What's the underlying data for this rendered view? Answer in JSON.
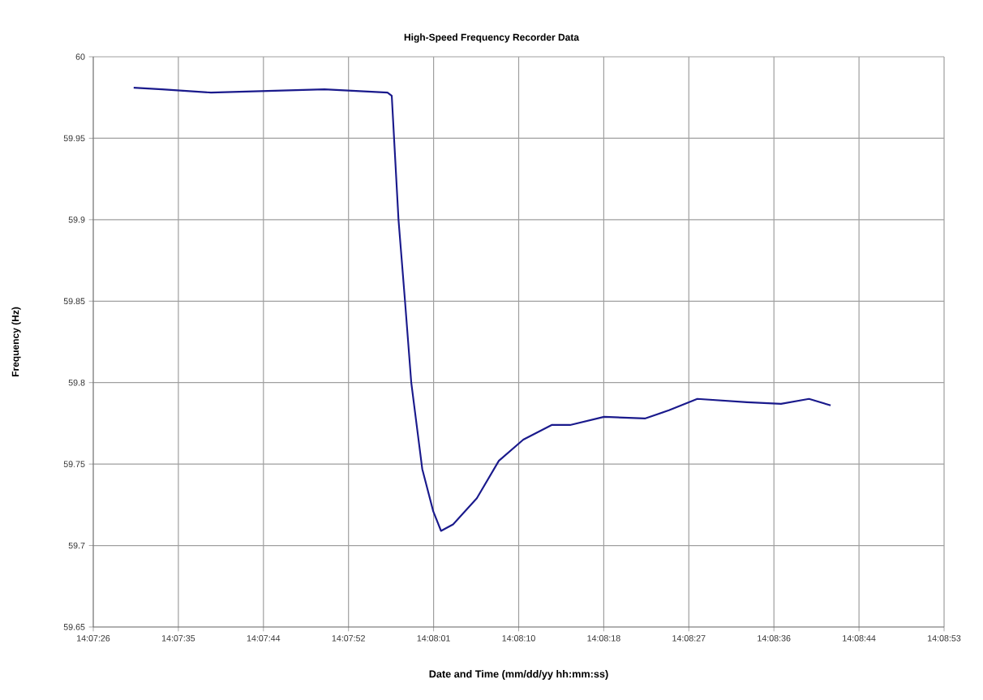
{
  "chart_data": {
    "type": "line",
    "title": "High-Speed Frequency Recorder Data",
    "xlabel": "Date and Time (mm/dd/yy hh:mm:ss)",
    "ylabel": "Frequency (Hz)",
    "x": [
      14.12514,
      14.12594,
      14.12732,
      14.12892,
      14.13052,
      14.1323,
      14.13242,
      14.13261,
      14.13279,
      14.13297,
      14.13328,
      14.13359,
      14.13381,
      14.13415,
      14.13482,
      14.13544,
      14.13613,
      14.13693,
      14.13745,
      14.13841,
      14.13956,
      14.14024,
      14.14104,
      14.14244,
      14.1434,
      14.14419,
      14.1448
    ],
    "series": [
      {
        "color": "#1a1a8c",
        "values": [
          59.981,
          59.98,
          59.978,
          59.979,
          59.98,
          59.978,
          59.976,
          59.9,
          59.851,
          59.8,
          59.747,
          59.721,
          59.709,
          59.713,
          59.729,
          59.752,
          59.765,
          59.774,
          59.774,
          59.779,
          59.778,
          59.783,
          59.79,
          59.788,
          59.787,
          59.79,
          59.786
        ]
      }
    ],
    "xlim": [
      14.124,
      14.148
    ],
    "ylim": [
      59.65,
      60
    ],
    "xticks": [
      {
        "value": 14.124,
        "label": "14:07:26"
      },
      {
        "value": 14.1264,
        "label": "14:07:35"
      },
      {
        "value": 14.1288,
        "label": "14:07:44"
      },
      {
        "value": 14.1312,
        "label": "14:07:52"
      },
      {
        "value": 14.1336,
        "label": "14:08:01"
      },
      {
        "value": 14.136,
        "label": "14:08:10"
      },
      {
        "value": 14.1384,
        "label": "14:08:18"
      },
      {
        "value": 14.1408,
        "label": "14:08:27"
      },
      {
        "value": 14.1432,
        "label": "14:08:36"
      },
      {
        "value": 14.1456,
        "label": "14:08:44"
      },
      {
        "value": 14.148,
        "label": "14:08:53"
      }
    ],
    "yticks": [
      59.65,
      59.7,
      59.75,
      59.8,
      59.85,
      59.9,
      59.95,
      60
    ],
    "grid": true,
    "marker": "none",
    "line_style": "solid"
  }
}
